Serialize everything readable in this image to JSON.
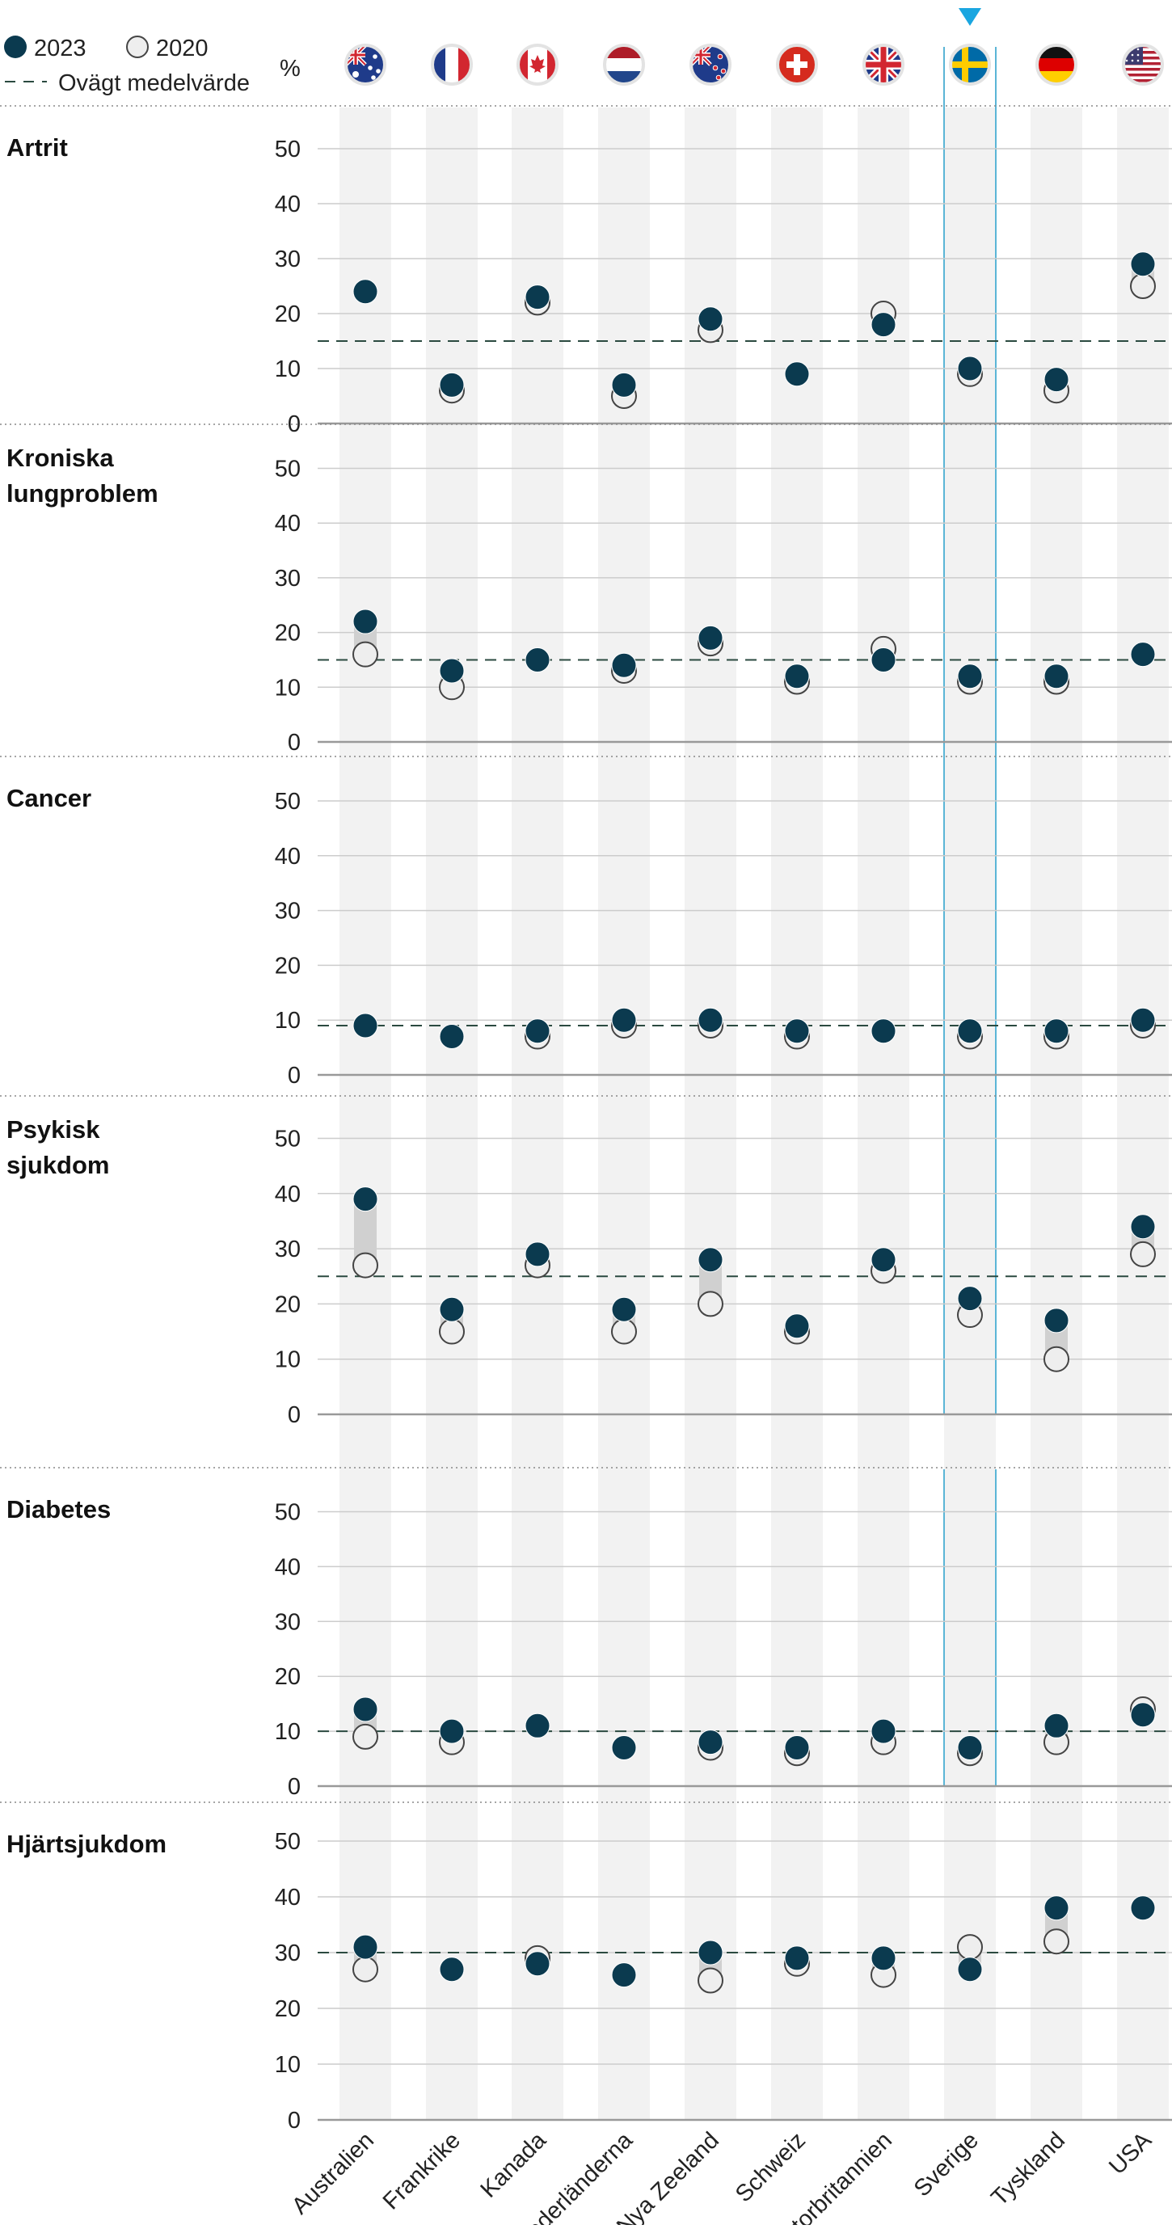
{
  "legend": {
    "current_label": "2023",
    "previous_label": "2020",
    "average_label": "Ovägt medelvärde",
    "unit": "%"
  },
  "colors": {
    "current": "#0b3a4f",
    "previous_fill": "#eeeeee",
    "previous_stroke": "#444444",
    "band": "#f2f2f2",
    "range_bar": "#d0d0d0",
    "average_line": "#2b4a40",
    "highlight": "#5bb5d6",
    "marker": "#1aa6e0",
    "grid": "#cccccc",
    "axis": "#999999"
  },
  "countries": [
    {
      "name": "Australien",
      "flag": "australia-flag"
    },
    {
      "name": "Frankrike",
      "flag": "france-flag"
    },
    {
      "name": "Kanada",
      "flag": "canada-flag"
    },
    {
      "name": "Nederländerna",
      "flag": "netherlands-flag"
    },
    {
      "name": "Nya Zeeland",
      "flag": "new-zealand-flag"
    },
    {
      "name": "Schweiz",
      "flag": "switzerland-flag"
    },
    {
      "name": "Storbritannien",
      "flag": "uk-flag"
    },
    {
      "name": "Sverige",
      "flag": "sweden-flag"
    },
    {
      "name": "Tyskland",
      "flag": "germany-flag"
    },
    {
      "name": "USA",
      "flag": "usa-flag"
    }
  ],
  "highlighted_country": "Sverige",
  "chart_data": [
    {
      "type": "scatter",
      "title": "Artrit",
      "categories": [
        "Australien",
        "Frankrike",
        "Kanada",
        "Nederländerna",
        "Nya Zeeland",
        "Schweiz",
        "Storbritannien",
        "Sverige",
        "Tyskland",
        "USA"
      ],
      "series": [
        {
          "name": "2023",
          "values": [
            24,
            7,
            23,
            7,
            19,
            9,
            18,
            10,
            8,
            29
          ]
        },
        {
          "name": "2020",
          "values": [
            null,
            6,
            22,
            5,
            17,
            null,
            20,
            9,
            6,
            25
          ]
        }
      ],
      "average": 15,
      "ylim": [
        0,
        50
      ],
      "yticks": [
        0,
        10,
        20,
        30,
        40,
        50
      ]
    },
    {
      "type": "scatter",
      "title": "Kroniska lungproblem",
      "categories": [
        "Australien",
        "Frankrike",
        "Kanada",
        "Nederländerna",
        "Nya Zeeland",
        "Schweiz",
        "Storbritannien",
        "Sverige",
        "Tyskland",
        "USA"
      ],
      "series": [
        {
          "name": "2023",
          "values": [
            22,
            13,
            15,
            14,
            19,
            12,
            15,
            12,
            12,
            16
          ]
        },
        {
          "name": "2020",
          "values": [
            16,
            10,
            null,
            13,
            18,
            11,
            17,
            11,
            11,
            null
          ]
        }
      ],
      "average": 15,
      "ylim": [
        0,
        50
      ],
      "yticks": [
        0,
        10,
        20,
        30,
        40,
        50
      ]
    },
    {
      "type": "scatter",
      "title": "Cancer",
      "categories": [
        "Australien",
        "Frankrike",
        "Kanada",
        "Nederländerna",
        "Nya Zeeland",
        "Schweiz",
        "Storbritannien",
        "Sverige",
        "Tyskland",
        "USA"
      ],
      "series": [
        {
          "name": "2023",
          "values": [
            9,
            7,
            8,
            10,
            10,
            8,
            8,
            8,
            8,
            10
          ]
        },
        {
          "name": "2020",
          "values": [
            null,
            null,
            7,
            9,
            9,
            7,
            null,
            7,
            7,
            9
          ]
        }
      ],
      "average": 9,
      "ylim": [
        0,
        50
      ],
      "yticks": [
        0,
        10,
        20,
        30,
        40,
        50
      ]
    },
    {
      "type": "scatter",
      "title": "Psykisk sjukdom",
      "categories": [
        "Australien",
        "Frankrike",
        "Kanada",
        "Nederländerna",
        "Nya Zeeland",
        "Schweiz",
        "Storbritannien",
        "Sverige",
        "Tyskland",
        "USA"
      ],
      "series": [
        {
          "name": "2023",
          "values": [
            39,
            19,
            29,
            19,
            28,
            16,
            28,
            21,
            17,
            34
          ]
        },
        {
          "name": "2020",
          "values": [
            27,
            15,
            27,
            15,
            20,
            15,
            26,
            18,
            10,
            29
          ]
        }
      ],
      "average": 25,
      "ylim": [
        0,
        50
      ],
      "yticks": [
        0,
        10,
        20,
        30,
        40,
        50
      ]
    },
    {
      "type": "scatter",
      "title": "Diabetes",
      "categories": [
        "Australien",
        "Frankrike",
        "Kanada",
        "Nederländerna",
        "Nya Zeeland",
        "Schweiz",
        "Storbritannien",
        "Sverige",
        "Tyskland",
        "USA"
      ],
      "series": [
        {
          "name": "2023",
          "values": [
            14,
            10,
            11,
            7,
            8,
            7,
            10,
            7,
            11,
            13
          ]
        },
        {
          "name": "2020",
          "values": [
            9,
            8,
            null,
            null,
            7,
            6,
            8,
            6,
            8,
            14
          ]
        }
      ],
      "average": 10,
      "ylim": [
        0,
        50
      ],
      "yticks": [
        0,
        10,
        20,
        30,
        40,
        50
      ]
    },
    {
      "type": "scatter",
      "title": "Hjärtsjukdom",
      "categories": [
        "Australien",
        "Frankrike",
        "Kanada",
        "Nederländerna",
        "Nya Zeeland",
        "Schweiz",
        "Storbritannien",
        "Sverige",
        "Tyskland",
        "USA"
      ],
      "series": [
        {
          "name": "2023",
          "values": [
            31,
            27,
            28,
            26,
            30,
            29,
            29,
            27,
            38,
            38
          ]
        },
        {
          "name": "2020",
          "values": [
            27,
            null,
            29,
            null,
            25,
            28,
            26,
            31,
            32,
            null
          ]
        }
      ],
      "average": 30,
      "ylim": [
        0,
        50
      ],
      "yticks": [
        0,
        10,
        20,
        30,
        40,
        50
      ]
    }
  ]
}
